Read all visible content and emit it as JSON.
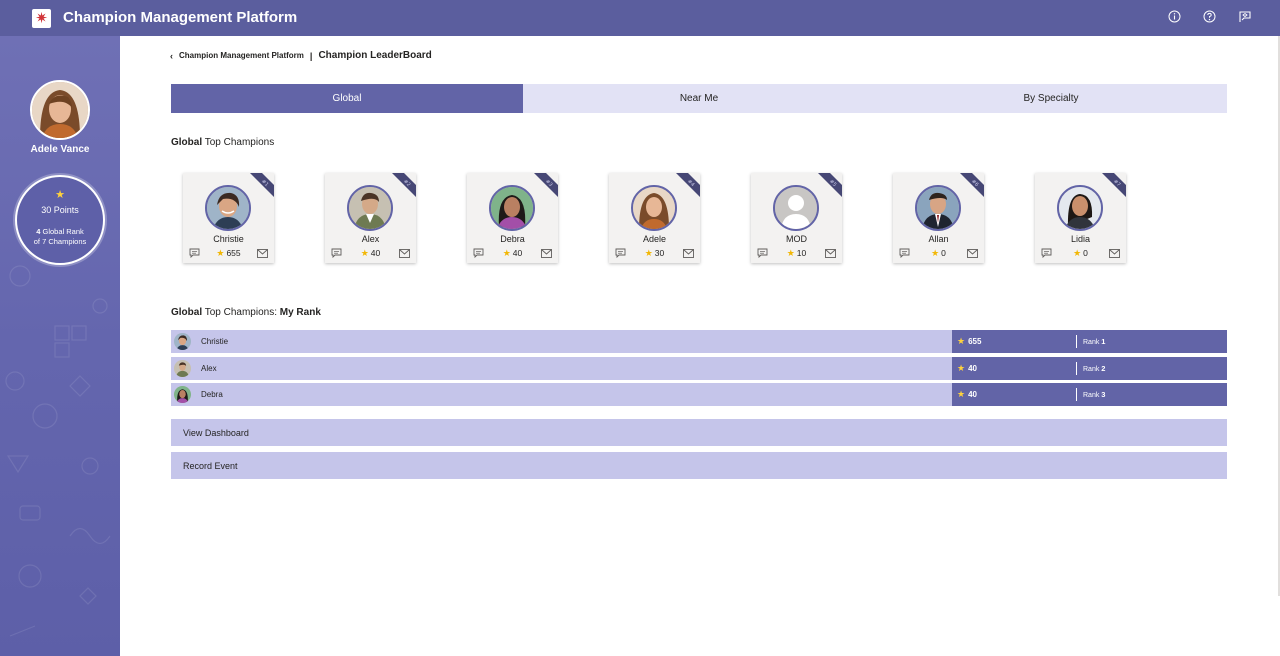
{
  "app": {
    "title": "Champion Management Platform",
    "accent_color": "#6264a7",
    "header_icons": [
      "info-icon",
      "help-icon",
      "feedback-icon"
    ]
  },
  "sidebar": {
    "user_name": "Adele Vance",
    "points_label": "30 Points",
    "rank_number": "4",
    "rank_text_1": " Global Rank",
    "rank_text_2": "of 7 Champions"
  },
  "breadcrumb": {
    "parent": "Champion Management Platform",
    "separator": "|",
    "current": "Champion LeaderBoard"
  },
  "tabs": [
    {
      "label": "Global",
      "active": true
    },
    {
      "label": "Near Me",
      "active": false
    },
    {
      "label": "By Specialty",
      "active": false
    }
  ],
  "top_champions": {
    "title_bold": "Global",
    "title_rest": " Top Champions",
    "cards": [
      {
        "name": "Christie",
        "score": "655",
        "rank_badge": "#1"
      },
      {
        "name": "Alex",
        "score": "40",
        "rank_badge": "#2"
      },
      {
        "name": "Debra",
        "score": "40",
        "rank_badge": "#3"
      },
      {
        "name": "Adele",
        "score": "30",
        "rank_badge": "#4"
      },
      {
        "name": "MOD",
        "score": "10",
        "rank_badge": "#5"
      },
      {
        "name": "Allan",
        "score": "0",
        "rank_badge": "#6"
      },
      {
        "name": "Lidia",
        "score": "0",
        "rank_badge": "#7"
      }
    ]
  },
  "my_rank": {
    "title_bold": "Global",
    "title_rest": " Top Champions: ",
    "title_bold_2": "My Rank",
    "rows": [
      {
        "name": "Christie",
        "score": "655",
        "rank_label": "Rank ",
        "rank": "1"
      },
      {
        "name": "Alex",
        "score": "40",
        "rank_label": "Rank ",
        "rank": "2"
      },
      {
        "name": "Debra",
        "score": "40",
        "rank_label": "Rank ",
        "rank": "3"
      }
    ]
  },
  "actions": {
    "view_dashboard": "View Dashboard",
    "record_event": "Record Event"
  }
}
